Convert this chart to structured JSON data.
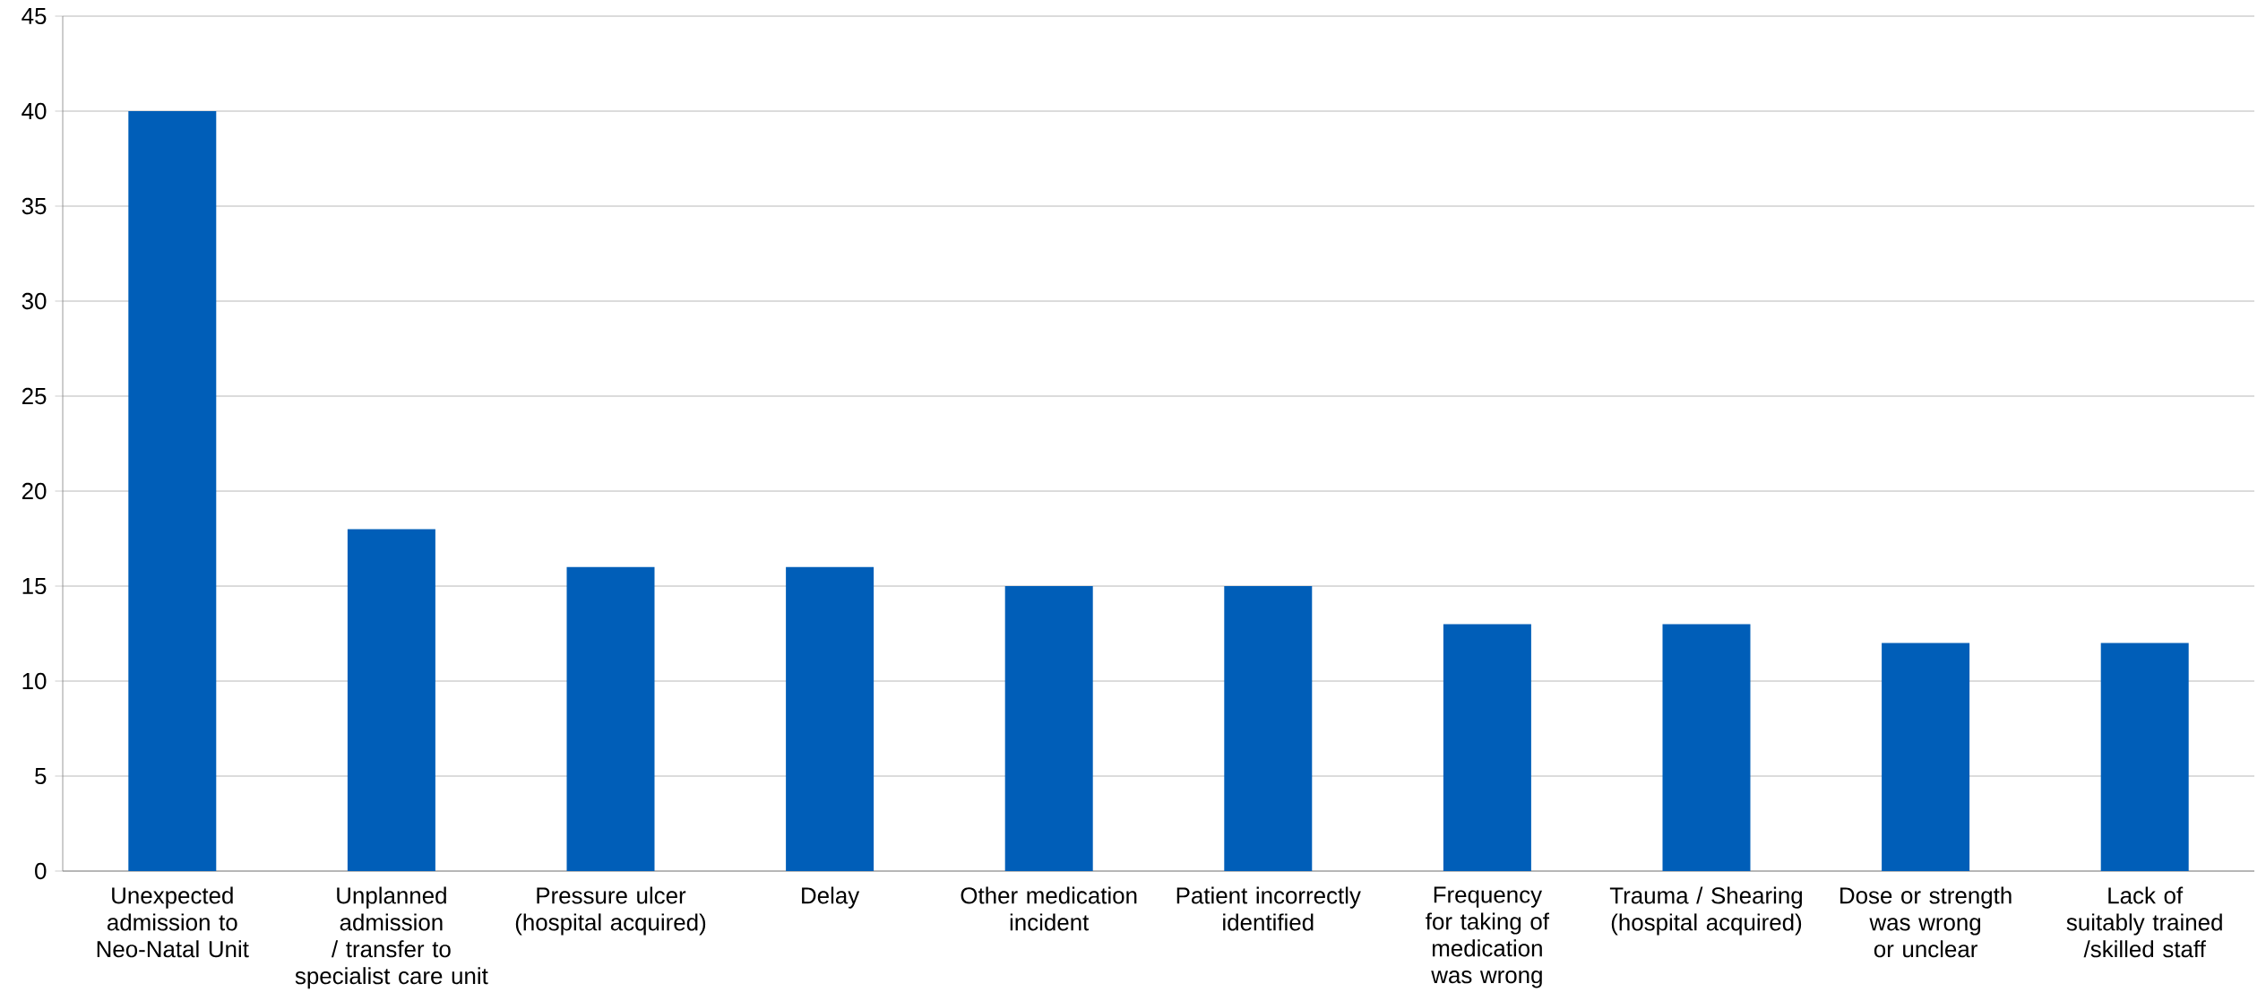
{
  "chart_data": {
    "type": "bar",
    "categories": [
      "Unexpected admission to Neo-Natal Unit",
      "Unplanned admission / transfer to specialist care unit",
      "Pressure ulcer (hospital acquired)",
      "Delay",
      "Other medication incident",
      "Patient incorrectly identified",
      "Frequency for taking of medication was wrong",
      "Trauma / Shearing (hospital acquired)",
      "Dose or strength was wrong or unclear",
      "Lack of suitably trained /skilled staff"
    ],
    "values": [
      40,
      18,
      16,
      16,
      15,
      15,
      13,
      13,
      12,
      12
    ],
    "color": "#005eb8",
    "ylim": [
      0,
      45
    ],
    "yticks": [
      0,
      5,
      10,
      15,
      20,
      25,
      30,
      35,
      40,
      45
    ],
    "grid": "y"
  }
}
